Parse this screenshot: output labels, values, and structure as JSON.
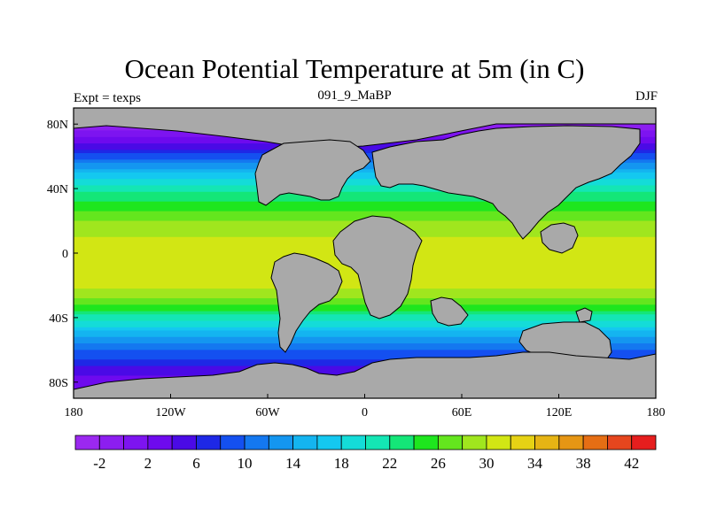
{
  "title": "Ocean Potential Temperature at 5m (in C)",
  "left_string": "Expt = texps",
  "center_string": "091_9_MaBP",
  "right_string": "DJF",
  "chart_data": {
    "type": "heatmap",
    "map_projection": "cylindrical-equidistant",
    "variable": "Ocean Potential Temperature at 5m",
    "units": "C",
    "lon_range": [
      -180,
      180
    ],
    "lat_range": [
      -90,
      90
    ],
    "x_ticks": [
      {
        "value": -180,
        "label": "180"
      },
      {
        "value": -120,
        "label": "120W"
      },
      {
        "value": -60,
        "label": "60W"
      },
      {
        "value": 0,
        "label": "0"
      },
      {
        "value": 60,
        "label": "60E"
      },
      {
        "value": 120,
        "label": "120E"
      },
      {
        "value": 180,
        "label": "180"
      }
    ],
    "y_ticks": [
      {
        "value": 80,
        "label": "80N"
      },
      {
        "value": 40,
        "label": "40N"
      },
      {
        "value": 0,
        "label": "0"
      },
      {
        "value": -40,
        "label": "40S"
      },
      {
        "value": -80,
        "label": "80S"
      }
    ],
    "zonal_temperature_profile": [
      {
        "lat": 90,
        "temp": -2
      },
      {
        "lat": 80,
        "temp": -2
      },
      {
        "lat": 72,
        "temp": 2
      },
      {
        "lat": 64,
        "temp": 6
      },
      {
        "lat": 56,
        "temp": 12
      },
      {
        "lat": 48,
        "temp": 17
      },
      {
        "lat": 40,
        "temp": 21
      },
      {
        "lat": 30,
        "temp": 25
      },
      {
        "lat": 20,
        "temp": 28
      },
      {
        "lat": 10,
        "temp": 30
      },
      {
        "lat": 0,
        "temp": 31
      },
      {
        "lat": -10,
        "temp": 32
      },
      {
        "lat": -20,
        "temp": 31
      },
      {
        "lat": -30,
        "temp": 27
      },
      {
        "lat": -40,
        "temp": 21
      },
      {
        "lat": -50,
        "temp": 15
      },
      {
        "lat": -60,
        "temp": 10
      },
      {
        "lat": -70,
        "temp": 6
      },
      {
        "lat": -80,
        "temp": 3
      },
      {
        "lat": -90,
        "temp": 2
      }
    ],
    "colorbar": {
      "levels": [
        -4,
        -2,
        0,
        2,
        4,
        6,
        8,
        10,
        12,
        14,
        16,
        18,
        20,
        22,
        24,
        26,
        28,
        30,
        32,
        34,
        36,
        38,
        40,
        42
      ],
      "labels": [
        "-2",
        "2",
        "6",
        "10",
        "14",
        "18",
        "22",
        "26",
        "30",
        "34",
        "38",
        "42"
      ],
      "colors": [
        "#9b28f0",
        "#8c1ef0",
        "#7d14f0",
        "#6e0aee",
        "#4a0ae6",
        "#1e28e6",
        "#1450f0",
        "#1478f0",
        "#1496f0",
        "#14b4f0",
        "#14c8f0",
        "#14dcd8",
        "#14e6b4",
        "#14e678",
        "#1ee61e",
        "#64e61e",
        "#a0e61e",
        "#d2e614",
        "#e6d214",
        "#e6b414",
        "#e69614",
        "#e66e14",
        "#e6461e",
        "#e61e1e"
      ]
    },
    "land_color": "#a9a9a9"
  }
}
